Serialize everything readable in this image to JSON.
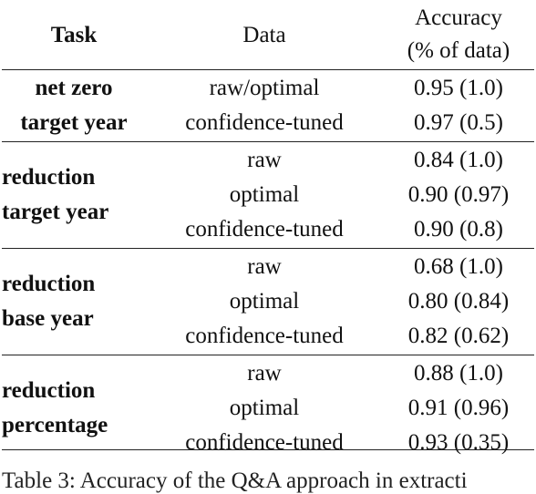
{
  "header": {
    "task": "Task",
    "data": "Data",
    "accuracy_line1": "Accuracy",
    "accuracy_line2": "(% of data)"
  },
  "groups": [
    {
      "task_line1": "net zero",
      "task_line2": "target year",
      "rows": [
        {
          "data": "raw/optimal",
          "accuracy": "0.95 (1.0)"
        },
        {
          "data": "confidence-tuned",
          "accuracy": "0.97 (0.5)"
        }
      ]
    },
    {
      "task_line1": "reduction",
      "task_line2": "target year",
      "rows": [
        {
          "data": "raw",
          "accuracy": "0.84 (1.0)"
        },
        {
          "data": "optimal",
          "accuracy": "0.90 (0.97)"
        },
        {
          "data": "confidence-tuned",
          "accuracy": "0.90 (0.8)"
        }
      ]
    },
    {
      "task_line1": "reduction",
      "task_line2": "base year",
      "rows": [
        {
          "data": "raw",
          "accuracy": "0.68 (1.0)"
        },
        {
          "data": "optimal",
          "accuracy": "0.80 (0.84)"
        },
        {
          "data": "confidence-tuned",
          "accuracy": "0.82 (0.62)"
        }
      ]
    },
    {
      "task_line1": "reduction",
      "task_line2": "percentage",
      "rows": [
        {
          "data": "raw",
          "accuracy": "0.88 (1.0)"
        },
        {
          "data": "optimal",
          "accuracy": "0.91 (0.96)"
        },
        {
          "data": "confidence-tuned",
          "accuracy": "0.93 (0.35)"
        }
      ]
    }
  ],
  "caption": "Table 3: Accuracy of the Q&A approach in extracti"
}
